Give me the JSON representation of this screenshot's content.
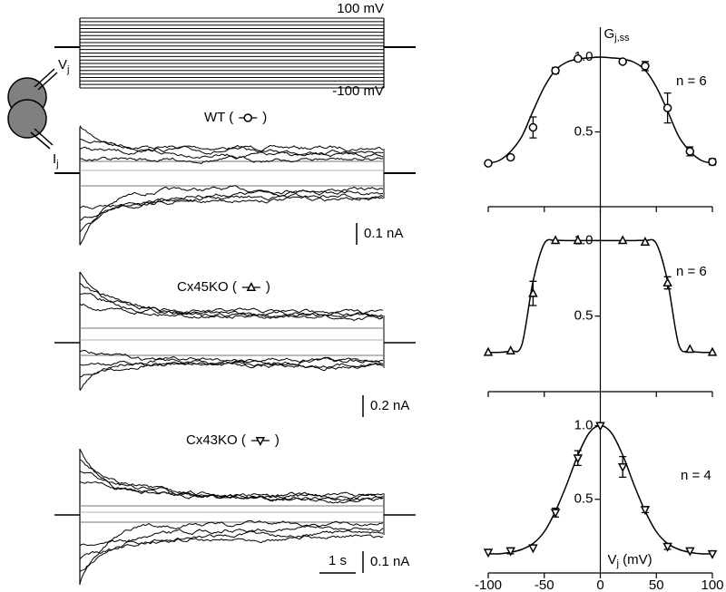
{
  "traces": {
    "protocol_labels": [
      "100 mV",
      "-100 mV"
    ],
    "cell_labels": [
      {
        "main": "V",
        "sub": "j"
      },
      {
        "main": "I",
        "sub": "j"
      }
    ],
    "panels": [
      {
        "label_open": "WT (",
        "label_close": ")",
        "scale_bar": "0.1 nA"
      },
      {
        "label_open": "Cx45KO (",
        "label_close": ")",
        "scale_bar": "0.2 nA"
      },
      {
        "label_open": "Cx43KO (",
        "label_close": ")",
        "scale_bar": "0.1 nA",
        "time_bar": "1 s"
      }
    ]
  },
  "chart_data": [
    {
      "type": "scatter",
      "annotation": "n = 6",
      "y_label": "G",
      "y_label_sub": "j,ss",
      "xlim": [
        -100,
        100
      ],
      "xticks": [
        -100,
        -50,
        0,
        50,
        100
      ],
      "show_xtick_labels": false,
      "ylim": [
        0,
        1.2
      ],
      "yticks": [
        0.5,
        {
          "value": 1,
          "label": "1.0"
        }
      ],
      "series": [
        {
          "marker": "circle",
          "color": "#000000",
          "x": [
            -100,
            -80,
            -60,
            -40,
            -20,
            20,
            40,
            60,
            80,
            100
          ],
          "values": [
            0.29,
            0.33,
            0.53,
            0.91,
            0.99,
            0.97,
            0.94,
            0.66,
            0.37,
            0.3
          ],
          "errors": [
            null,
            null,
            0.07,
            0.02,
            null,
            null,
            0.03,
            0.1,
            0.03,
            0.02
          ]
        }
      ],
      "fit": {
        "x": [
          -100,
          -90,
          -80,
          -70,
          -60,
          -50,
          -40,
          -30,
          -20,
          -10,
          0,
          10,
          20,
          30,
          40,
          50,
          60,
          70,
          80,
          90,
          100
        ],
        "values": [
          0.29,
          0.31,
          0.37,
          0.47,
          0.64,
          0.8,
          0.913,
          0.966,
          0.987,
          0.995,
          1.0,
          0.995,
          0.987,
          0.966,
          0.913,
          0.8,
          0.64,
          0.47,
          0.37,
          0.31,
          0.29
        ]
      }
    },
    {
      "type": "scatter",
      "annotation": "n = 6",
      "xlim": [
        -100,
        100
      ],
      "xticks": [
        -100,
        -50,
        0,
        50,
        100
      ],
      "show_xtick_labels": false,
      "ylim": [
        0,
        1.2
      ],
      "yticks": [
        0.5,
        {
          "value": 1,
          "label": "1.0"
        }
      ],
      "series": [
        {
          "marker": "triangle-up",
          "color": "#000000",
          "x": [
            -100,
            -80,
            -60,
            -40,
            -20,
            20,
            40,
            60,
            80,
            100
          ],
          "values": [
            0.26,
            0.27,
            0.65,
            1.0,
            1.0,
            1.0,
            0.99,
            0.72,
            0.28,
            0.26
          ],
          "errors": [
            null,
            null,
            0.08,
            null,
            null,
            null,
            null,
            0.04,
            null,
            null
          ]
        }
      ],
      "fit": {
        "x": [
          -100,
          -90,
          -80,
          -70,
          -60,
          -50,
          -40,
          -30,
          -20,
          -10,
          0,
          10,
          20,
          30,
          40,
          50,
          60,
          70,
          80,
          90,
          100
        ],
        "values": [
          0.26,
          0.26,
          0.27,
          0.31,
          0.73,
          0.98,
          1,
          1,
          1,
          1,
          1,
          1,
          1,
          1,
          1,
          0.98,
          0.73,
          0.31,
          0.27,
          0.26,
          0.26
        ]
      }
    },
    {
      "type": "scatter",
      "annotation": "n = 4",
      "x_label": "V",
      "x_label_sub": "j",
      "x_label_unit": " (mV)",
      "xlim": [
        -100,
        100
      ],
      "xticks": [
        -100,
        -50,
        0,
        50,
        100
      ],
      "show_xtick_labels": true,
      "ylim": [
        0,
        1.2
      ],
      "yticks": [
        0.5,
        {
          "value": 1,
          "label": "1.0"
        }
      ],
      "series": [
        {
          "marker": "triangle-down",
          "color": "#000000",
          "x": [
            -100,
            -80,
            -60,
            -40,
            -20,
            0,
            20,
            40,
            60,
            80,
            100
          ],
          "values": [
            0.14,
            0.15,
            0.17,
            0.41,
            0.78,
            1.0,
            0.72,
            0.43,
            0.18,
            0.15,
            0.13
          ],
          "errors": [
            null,
            0.02,
            null,
            0.03,
            0.05,
            null,
            0.07,
            0.02,
            0.02,
            null,
            null
          ]
        }
      ],
      "fit": {
        "x": [
          -100,
          -90,
          -80,
          -70,
          -60,
          -50,
          -40,
          -30,
          -20,
          -10,
          0,
          10,
          20,
          30,
          40,
          50,
          60,
          70,
          80,
          90,
          100
        ],
        "values": [
          0.13,
          0.13,
          0.14,
          0.16,
          0.2,
          0.28,
          0.42,
          0.6,
          0.8,
          0.95,
          1.0,
          0.95,
          0.8,
          0.6,
          0.42,
          0.28,
          0.2,
          0.16,
          0.14,
          0.13,
          0.13
        ]
      }
    }
  ]
}
